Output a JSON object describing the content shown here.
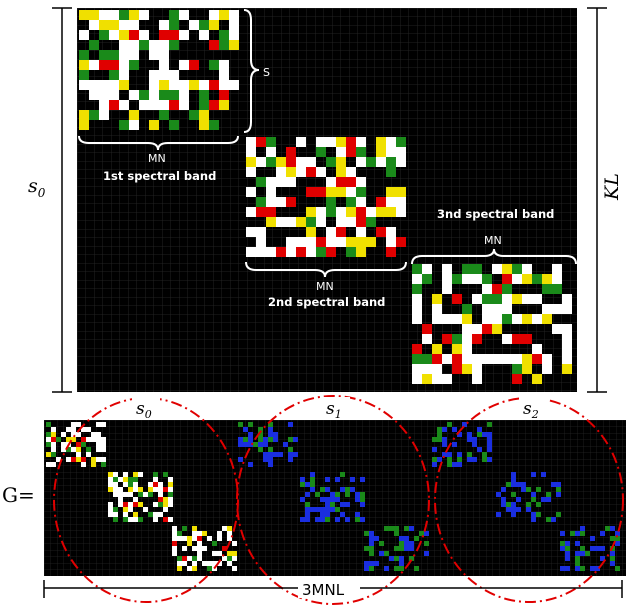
{
  "top_matrix": {
    "left_dimension": "s",
    "left_dimension_sub": "0",
    "right_dimension": "KL",
    "block_size_label": "S",
    "blocks": [
      {
        "width_label": "MN",
        "band_label": "1st spectral band"
      },
      {
        "width_label": "MN",
        "band_label": "2nd spectral band"
      },
      {
        "width_label": "MN",
        "band_label": "3nd spectral band"
      }
    ]
  },
  "bottom_matrix": {
    "equation_lhs": "G=",
    "groups": [
      {
        "symbol": "s",
        "sub": "0"
      },
      {
        "symbol": "s",
        "sub": "1"
      },
      {
        "symbol": "s",
        "sub": "2"
      }
    ],
    "width_label": "3MNL"
  },
  "colors": {
    "background": "#000000",
    "grid": "#2a2a2a",
    "pixel_white": "#ffffff",
    "pixel_red": "#e00000",
    "pixel_green": "#1a8a1a",
    "pixel_yellow": "#f0e000",
    "pixel_blue": "#1a2ee0",
    "circle": "#e00000"
  }
}
